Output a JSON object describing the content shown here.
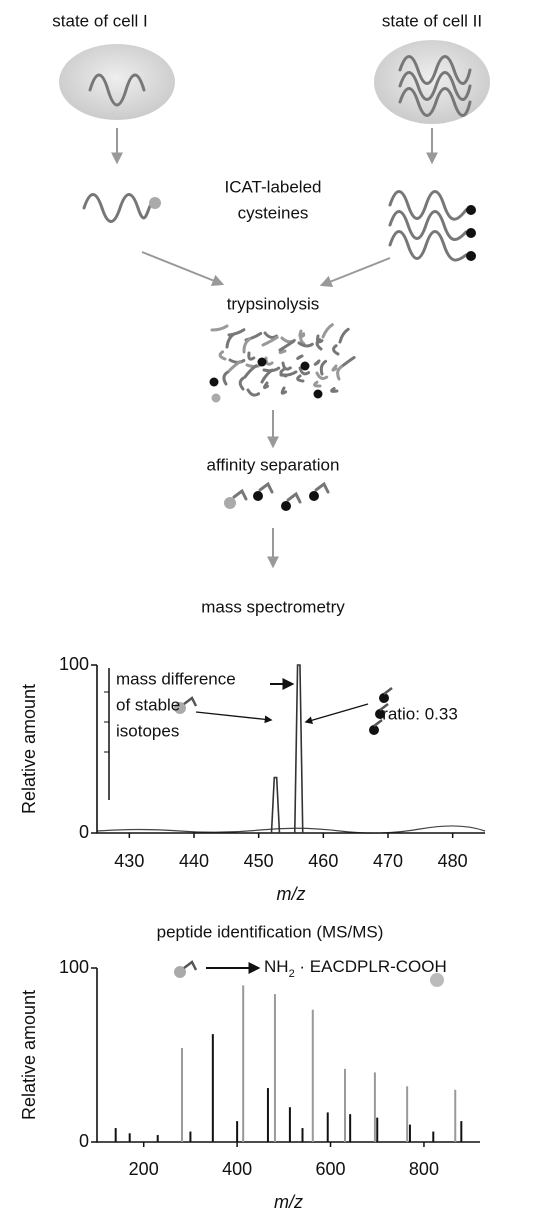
{
  "labels": {
    "cell_1": "state of cell I",
    "cell_2": "state of cell II",
    "icat": [
      "ICAT-labeled",
      "cysteines"
    ],
    "trypsinolysis": "trypsinolysis",
    "affinity": "affinity separation",
    "mass_spec": "mass spectrometry"
  },
  "chart_data": [
    {
      "type": "spectrum",
      "y_label": "Relative amount",
      "x_label": "m/z",
      "xlim": [
        425,
        485
      ],
      "xticks": [
        430,
        440,
        450,
        460,
        470,
        480
      ],
      "ylim": [
        0,
        100
      ],
      "yticks": [
        0,
        100
      ],
      "annotations": [
        "mass difference",
        "of stable",
        "isotopes",
        "ratio: 0.33"
      ],
      "series": [
        {
          "color": "#333333",
          "x": [
            452.6,
            456.2
          ],
          "values": [
            33,
            100
          ]
        }
      ]
    },
    {
      "type": "stick",
      "title": "peptide identification (MS/MS)",
      "y_label": "Relative amount",
      "x_label": "m/z",
      "xlim": [
        100,
        920
      ],
      "xticks": [
        200,
        400,
        600,
        800
      ],
      "ylim": [
        0,
        100
      ],
      "yticks": [
        0,
        100
      ],
      "sequence": [
        "NH",
        "2",
        " · EACDPLR-COOH"
      ],
      "series": [
        {
          "color": "#999999",
          "x": [
            282,
            413,
            481,
            562,
            631,
            695,
            764,
            867
          ],
          "values": [
            54,
            90,
            85,
            76,
            42,
            40,
            32,
            30
          ]
        },
        {
          "color": "#111111",
          "x": [
            140,
            170,
            230,
            300,
            348,
            400,
            466,
            513,
            540,
            594,
            642,
            700,
            770,
            820,
            880
          ],
          "values": [
            8,
            5,
            4,
            6,
            62,
            12,
            31,
            20,
            8,
            17,
            16,
            14,
            10,
            6,
            12
          ]
        }
      ]
    }
  ]
}
